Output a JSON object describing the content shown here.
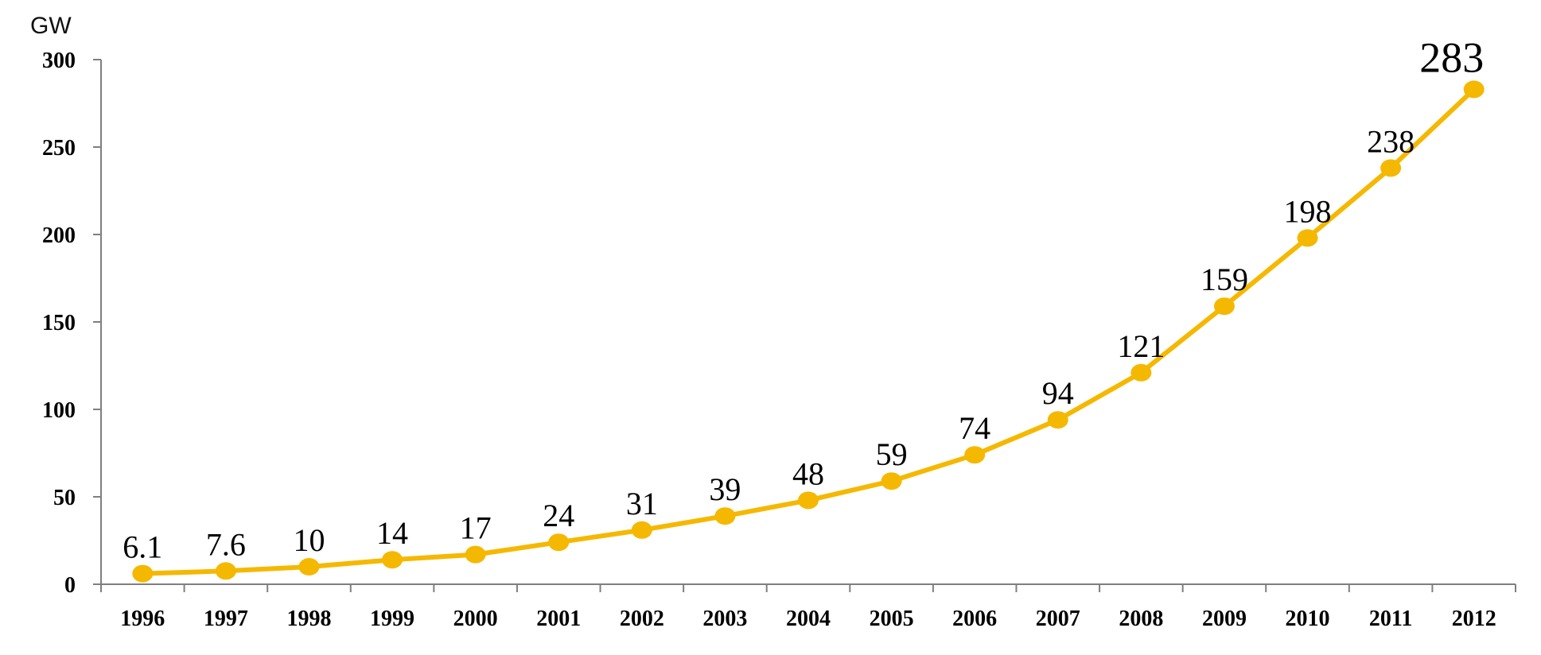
{
  "chart_data": {
    "type": "line",
    "ylabel": "GW",
    "ylim": [
      0,
      300
    ],
    "yticks": [
      0,
      50,
      100,
      150,
      200,
      250,
      300
    ],
    "grid": false,
    "legend": "none",
    "categories": [
      "1996",
      "1997",
      "1998",
      "1999",
      "2000",
      "2001",
      "2002",
      "2003",
      "2004",
      "2005",
      "2006",
      "2007",
      "2008",
      "2009",
      "2010",
      "2011",
      "2012"
    ],
    "series": [
      {
        "values": [
          6.1,
          7.6,
          10,
          14,
          17,
          24,
          31,
          39,
          48,
          59,
          74,
          94,
          121,
          159,
          198,
          238,
          283
        ],
        "labels": [
          "6.1",
          "7.6",
          "10",
          "14",
          "17",
          "24",
          "31",
          "39",
          "48",
          "59",
          "74",
          "94",
          "121",
          "159",
          "198",
          "238",
          "283"
        ],
        "color": "#F5B800"
      }
    ]
  }
}
